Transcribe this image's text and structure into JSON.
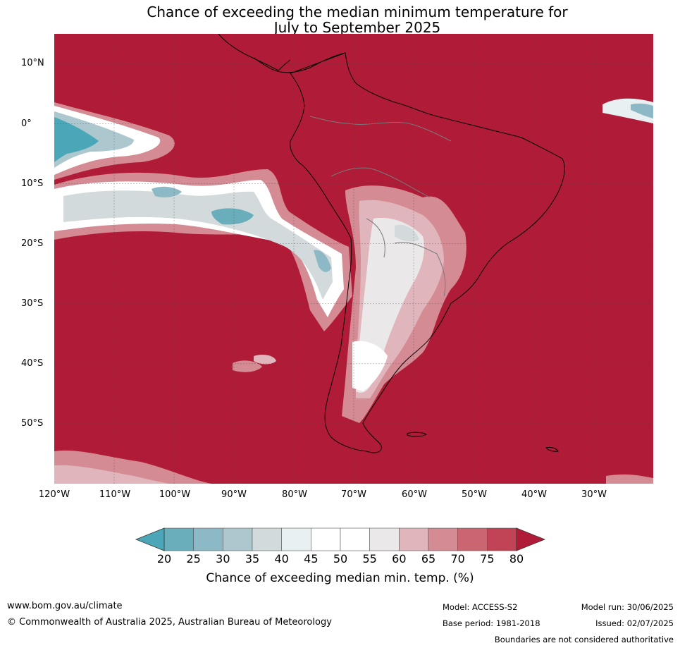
{
  "title": {
    "line1": "Chance of exceeding the median minimum temperature for",
    "line2": "July to September 2025"
  },
  "map": {
    "lat_ticks": [
      "10°N",
      "0°",
      "10°S",
      "20°S",
      "30°S",
      "40°S",
      "50°S"
    ],
    "lon_ticks": [
      "120°W",
      "110°W",
      "100°W",
      "90°W",
      "80°W",
      "70°W",
      "60°W",
      "50°W",
      "40°W",
      "30°W"
    ],
    "background_color": "#b01c37",
    "extent": {
      "lon": [
        -120,
        -20
      ],
      "lat": [
        -60,
        15
      ]
    }
  },
  "colorbar": {
    "label": "Chance of exceeding median min. temp. (%)",
    "ticks": [
      "20",
      "25",
      "30",
      "35",
      "40",
      "45",
      "50",
      "55",
      "60",
      "65",
      "70",
      "75",
      "80"
    ],
    "low_color": "#4ba7b8",
    "high_color": "#b01c37",
    "colors": [
      "#6aaebc",
      "#8db9c6",
      "#adc7cf",
      "#d3dadc",
      "#e9f0f2",
      "#ffffff",
      "#ffffff",
      "#ebe8ea",
      "#e0b6bc",
      "#d48b94",
      "#c96671",
      "#c04455"
    ]
  },
  "footer": {
    "website": "www.bom.gov.au/climate",
    "copyright": "© Commonwealth of Australia 2025, Australian Bureau of Meteorology",
    "model": "Model: ACCESS-S2",
    "base_period": "Base period: 1981-2018",
    "model_run": "Model run: 30/06/2025",
    "issued": "Issued: 02/07/2025",
    "disclaimer": "Boundaries are not considered authoritative"
  }
}
